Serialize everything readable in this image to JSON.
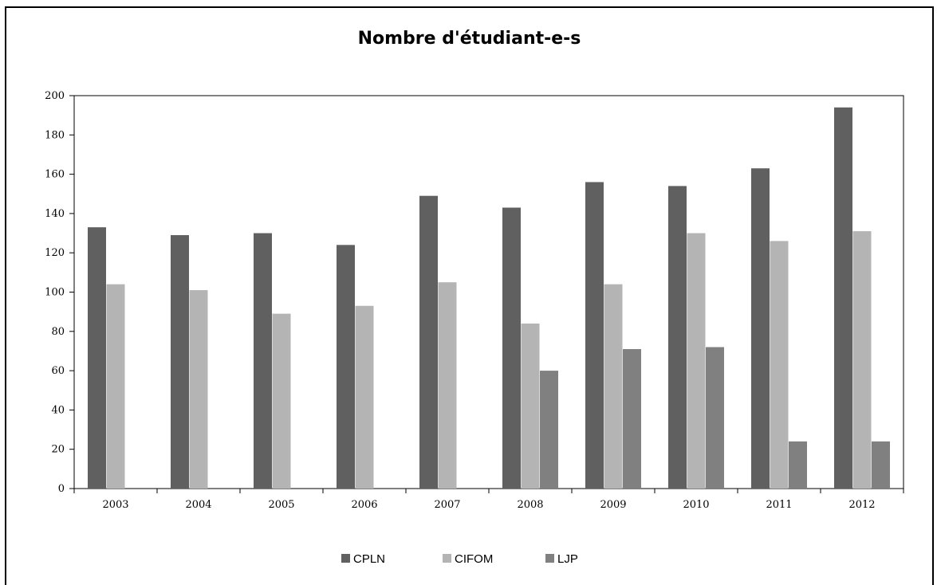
{
  "chart_data": {
    "type": "bar",
    "title": "Nombre d'étudiant-e-s",
    "categories": [
      "2003",
      "2004",
      "2005",
      "2006",
      "2007",
      "2008",
      "2009",
      "2010",
      "2011",
      "2012"
    ],
    "series": [
      {
        "name": "CPLN",
        "color": "#606060",
        "values": [
          133,
          129,
          130,
          124,
          149,
          143,
          156,
          154,
          163,
          194
        ]
      },
      {
        "name": "CIFOM",
        "color": "#b4b4b4",
        "values": [
          104,
          101,
          89,
          93,
          105,
          84,
          104,
          130,
          126,
          131
        ]
      },
      {
        "name": "LJP",
        "color": "#808080",
        "values": [
          null,
          null,
          null,
          null,
          null,
          60,
          71,
          72,
          24,
          24
        ]
      }
    ],
    "ylim": [
      0,
      200
    ],
    "yticks": [
      0,
      20,
      40,
      60,
      80,
      100,
      120,
      140,
      160,
      180,
      200
    ],
    "legend_position": "bottom",
    "grid": false
  }
}
